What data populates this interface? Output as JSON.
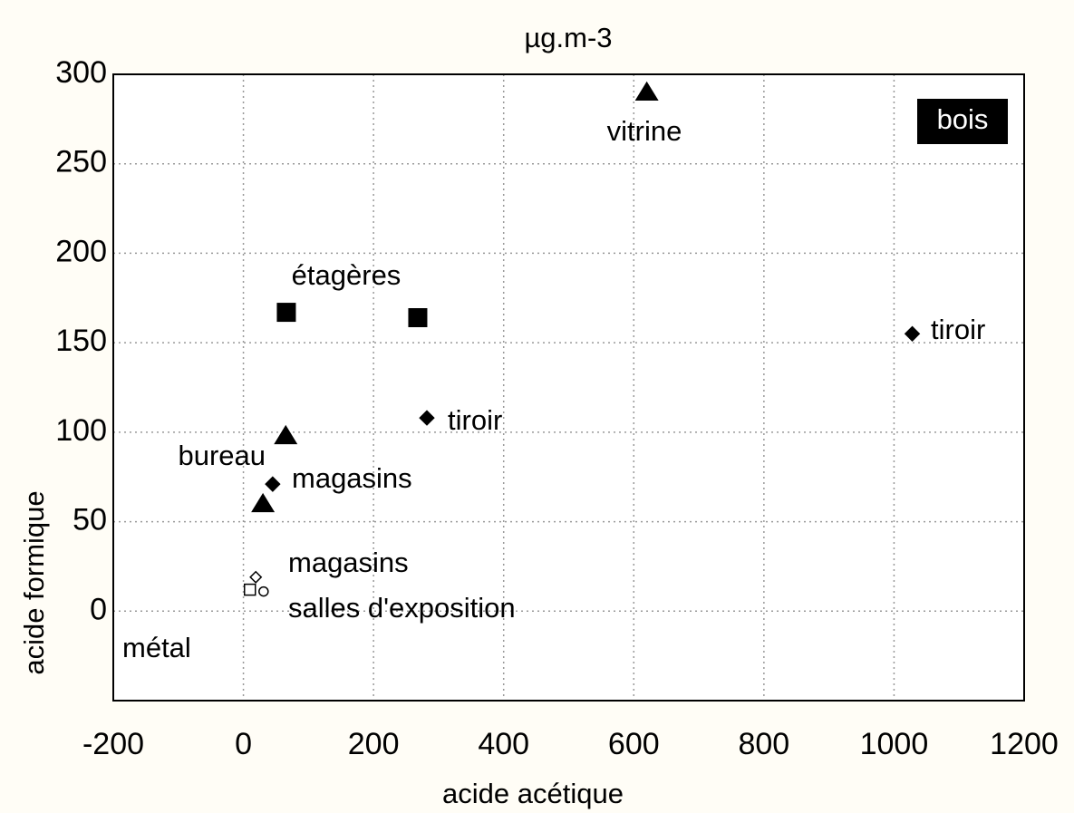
{
  "chart_data": {
    "type": "scatter",
    "title": "µg.m-3",
    "x_label": "acide acétique",
    "y_label": "acide formique",
    "xlim": [
      -200,
      1200
    ],
    "ylim": [
      -50,
      300
    ],
    "xticks": [
      -200,
      0,
      200,
      400,
      600,
      800,
      1000,
      1200
    ],
    "yticks": [
      0,
      50,
      100,
      150,
      200,
      250,
      300
    ],
    "grid": true,
    "series": [
      {
        "marker": "triangle",
        "color": "#000000",
        "filled": true,
        "x": [
          620,
          65,
          30
        ],
        "y": [
          290,
          98,
          60
        ]
      },
      {
        "marker": "square",
        "color": "#000000",
        "filled": true,
        "x": [
          66,
          268
        ],
        "y": [
          167,
          164
        ]
      },
      {
        "marker": "diamond",
        "color": "#000000",
        "filled": true,
        "x": [
          282,
          45,
          1028
        ],
        "y": [
          108,
          71,
          155
        ]
      },
      {
        "marker": "diamond",
        "color": "#000000",
        "filled": false,
        "x": [
          19
        ],
        "y": [
          19
        ]
      },
      {
        "marker": "square",
        "color": "#000000",
        "filled": false,
        "x": [
          10
        ],
        "y": [
          12
        ]
      },
      {
        "marker": "circle",
        "color": "#000000",
        "filled": false,
        "x": [
          31
        ],
        "y": [
          11
        ]
      }
    ],
    "annotations": [
      "vitrine",
      "étagères",
      "tiroir",
      "tiroir",
      "bureau",
      "magasins",
      "magasins",
      "salles d'exposition",
      "métal",
      "bois"
    ]
  }
}
